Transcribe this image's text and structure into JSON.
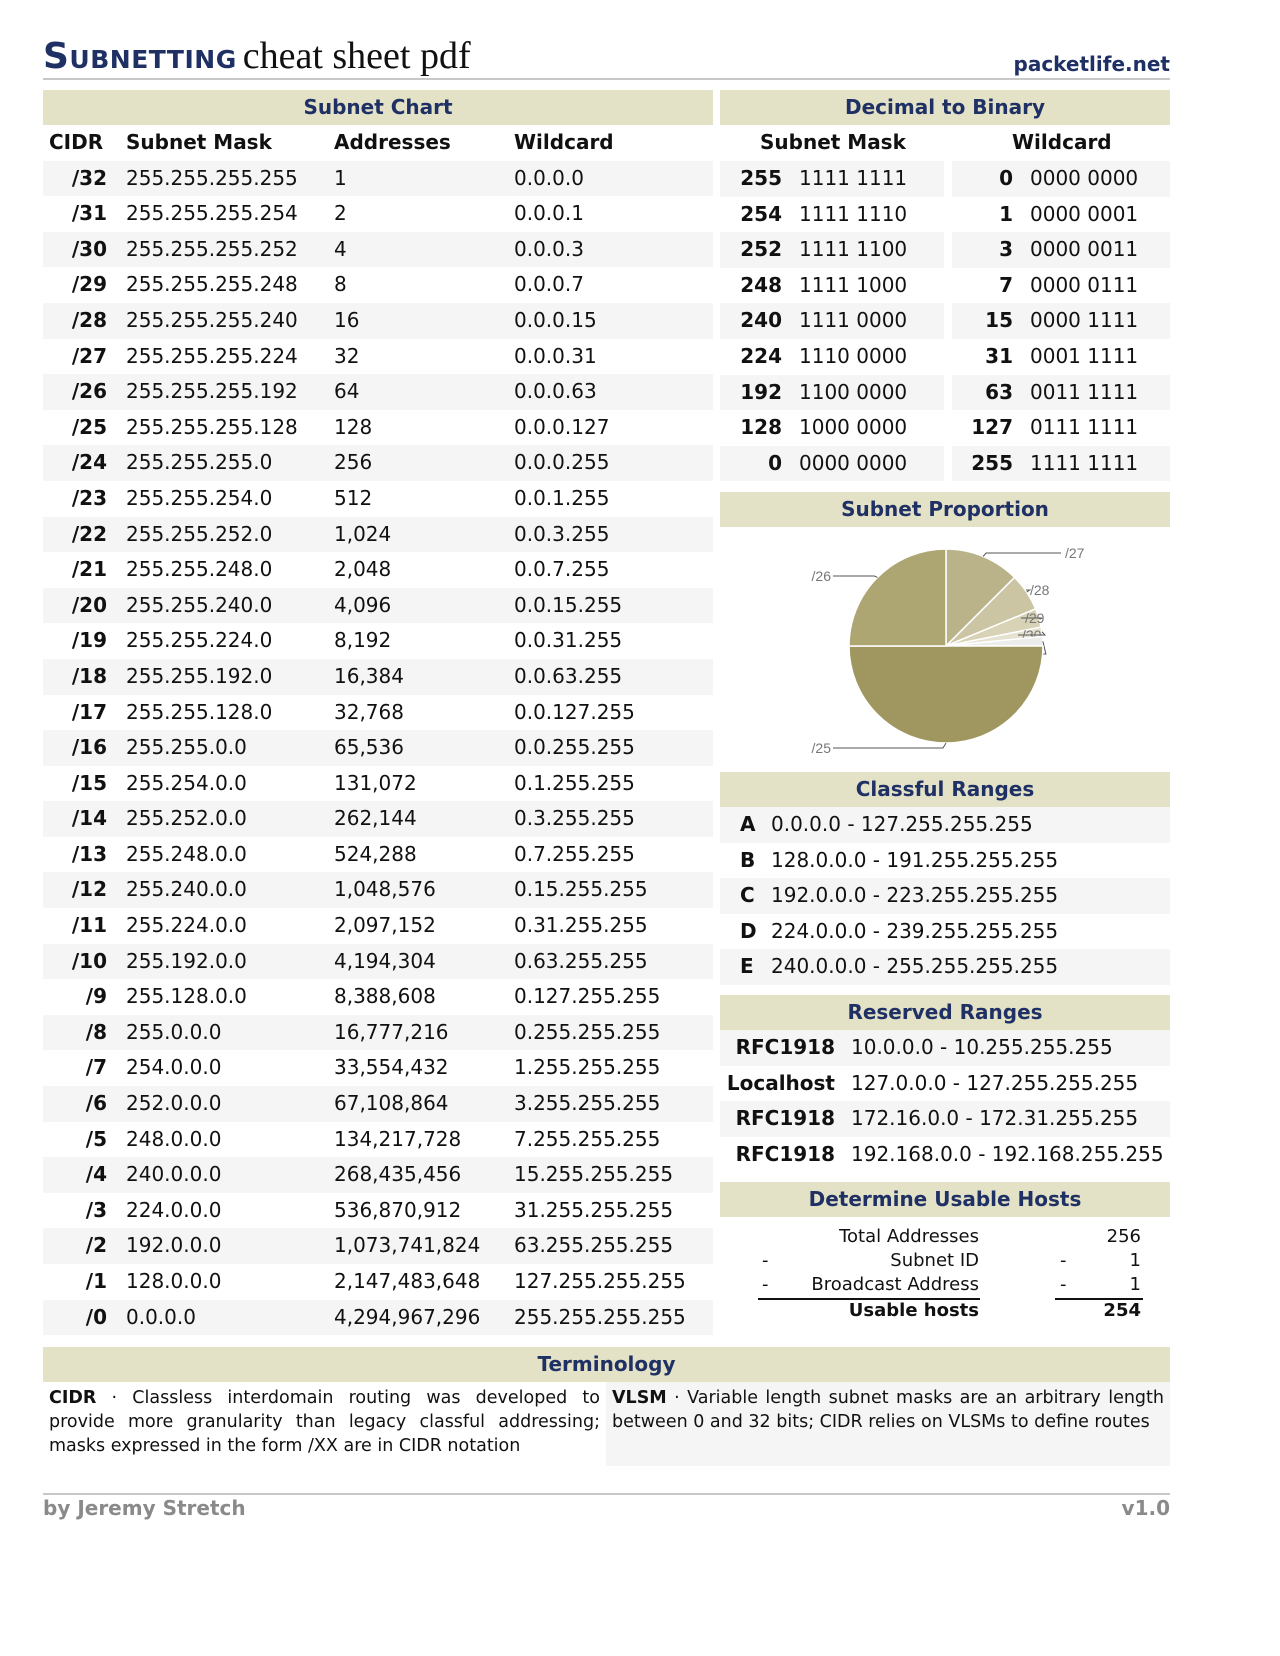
{
  "header": {
    "title_bold": "Subnetting",
    "title_rest": "cheat sheet pdf",
    "site": "packetlife.net"
  },
  "subnet_chart": {
    "title": "Subnet Chart",
    "columns": [
      "CIDR",
      "Subnet Mask",
      "Addresses",
      "Wildcard"
    ],
    "rows": [
      [
        "/32",
        "255.255.255.255",
        "1",
        "0.0.0.0"
      ],
      [
        "/31",
        "255.255.255.254",
        "2",
        "0.0.0.1"
      ],
      [
        "/30",
        "255.255.255.252",
        "4",
        "0.0.0.3"
      ],
      [
        "/29",
        "255.255.255.248",
        "8",
        "0.0.0.7"
      ],
      [
        "/28",
        "255.255.255.240",
        "16",
        "0.0.0.15"
      ],
      [
        "/27",
        "255.255.255.224",
        "32",
        "0.0.0.31"
      ],
      [
        "/26",
        "255.255.255.192",
        "64",
        "0.0.0.63"
      ],
      [
        "/25",
        "255.255.255.128",
        "128",
        "0.0.0.127"
      ],
      [
        "/24",
        "255.255.255.0",
        "256",
        "0.0.0.255"
      ],
      [
        "/23",
        "255.255.254.0",
        "512",
        "0.0.1.255"
      ],
      [
        "/22",
        "255.255.252.0",
        "1,024",
        "0.0.3.255"
      ],
      [
        "/21",
        "255.255.248.0",
        "2,048",
        "0.0.7.255"
      ],
      [
        "/20",
        "255.255.240.0",
        "4,096",
        "0.0.15.255"
      ],
      [
        "/19",
        "255.255.224.0",
        "8,192",
        "0.0.31.255"
      ],
      [
        "/18",
        "255.255.192.0",
        "16,384",
        "0.0.63.255"
      ],
      [
        "/17",
        "255.255.128.0",
        "32,768",
        "0.0.127.255"
      ],
      [
        "/16",
        "255.255.0.0",
        "65,536",
        "0.0.255.255"
      ],
      [
        "/15",
        "255.254.0.0",
        "131,072",
        "0.1.255.255"
      ],
      [
        "/14",
        "255.252.0.0",
        "262,144",
        "0.3.255.255"
      ],
      [
        "/13",
        "255.248.0.0",
        "524,288",
        "0.7.255.255"
      ],
      [
        "/12",
        "255.240.0.0",
        "1,048,576",
        "0.15.255.255"
      ],
      [
        "/11",
        "255.224.0.0",
        "2,097,152",
        "0.31.255.255"
      ],
      [
        "/10",
        "255.192.0.0",
        "4,194,304",
        "0.63.255.255"
      ],
      [
        "/9",
        "255.128.0.0",
        "8,388,608",
        "0.127.255.255"
      ],
      [
        "/8",
        "255.0.0.0",
        "16,777,216",
        "0.255.255.255"
      ],
      [
        "/7",
        "254.0.0.0",
        "33,554,432",
        "1.255.255.255"
      ],
      [
        "/6",
        "252.0.0.0",
        "67,108,864",
        "3.255.255.255"
      ],
      [
        "/5",
        "248.0.0.0",
        "134,217,728",
        "7.255.255.255"
      ],
      [
        "/4",
        "240.0.0.0",
        "268,435,456",
        "15.255.255.255"
      ],
      [
        "/3",
        "224.0.0.0",
        "536,870,912",
        "31.255.255.255"
      ],
      [
        "/2",
        "192.0.0.0",
        "1,073,741,824",
        "63.255.255.255"
      ],
      [
        "/1",
        "128.0.0.0",
        "2,147,483,648",
        "127.255.255.255"
      ],
      [
        "/0",
        "0.0.0.0",
        "4,294,967,296",
        "255.255.255.255"
      ]
    ]
  },
  "dec_bin": {
    "title": "Decimal to Binary",
    "columns": [
      "Subnet Mask",
      "Wildcard"
    ],
    "mask_rows": [
      [
        "255",
        "1111 1111"
      ],
      [
        "254",
        "1111 1110"
      ],
      [
        "252",
        "1111 1100"
      ],
      [
        "248",
        "1111 1000"
      ],
      [
        "240",
        "1111 0000"
      ],
      [
        "224",
        "1110 0000"
      ],
      [
        "192",
        "1100 0000"
      ],
      [
        "128",
        "1000 0000"
      ],
      [
        "0",
        "0000 0000"
      ]
    ],
    "wild_rows": [
      [
        "0",
        "0000 0000"
      ],
      [
        "1",
        "0000 0001"
      ],
      [
        "3",
        "0000 0011"
      ],
      [
        "7",
        "0000 0111"
      ],
      [
        "15",
        "0000 1111"
      ],
      [
        "31",
        "0001 1111"
      ],
      [
        "63",
        "0011 1111"
      ],
      [
        "127",
        "0111 1111"
      ],
      [
        "255",
        "1111 1111"
      ]
    ]
  },
  "proportion": {
    "title": "Subnet Proportion"
  },
  "chart_data": {
    "type": "pie",
    "categories": [
      "/27",
      "/28",
      "/29",
      "/30",
      "/30",
      "/25",
      "/26"
    ],
    "values": [
      0.125,
      0.0625,
      0.03125,
      0.015625,
      0.015625,
      0.5,
      0.25
    ],
    "colors": [
      "#bab289",
      "#ccc5a3",
      "#d8d2b6",
      "#e6e2d0",
      "#ececec",
      "#9f9660",
      "#ada572"
    ]
  },
  "classful": {
    "title": "Classful Ranges",
    "rows": [
      [
        "A",
        "0.0.0.0 - 127.255.255.255"
      ],
      [
        "B",
        "128.0.0.0 - 191.255.255.255"
      ],
      [
        "C",
        "192.0.0.0 - 223.255.255.255"
      ],
      [
        "D",
        "224.0.0.0 - 239.255.255.255"
      ],
      [
        "E",
        "240.0.0.0 - 255.255.255.255"
      ]
    ]
  },
  "reserved": {
    "title": "Reserved Ranges",
    "rows": [
      [
        "RFC1918",
        "10.0.0.0 - 10.255.255.255"
      ],
      [
        "Localhost",
        "127.0.0.0 - 127.255.255.255"
      ],
      [
        "RFC1918",
        "172.16.0.0 - 172.31.255.255"
      ],
      [
        "RFC1918",
        "192.168.0.0 - 192.168.255.255"
      ]
    ]
  },
  "usable": {
    "title": "Determine Usable Hosts",
    "rows": [
      [
        "",
        "Total Addresses",
        "",
        "256"
      ],
      [
        "-",
        "Subnet ID",
        "-",
        "1"
      ],
      [
        "-",
        "Broadcast Address",
        "-",
        "1"
      ]
    ],
    "result_label": "Usable hosts",
    "result_value": "254"
  },
  "terminology": {
    "title": "Terminology",
    "cidr_term": "CIDR",
    "cidr_text": " · Classless interdomain routing was developed to provide more granularity than legacy classful addressing; masks expressed in the form /XX are in CIDR notation",
    "vlsm_term": "VLSM",
    "vlsm_text": " · Variable length subnet masks are an arbitrary length between 0 and 32 bits; CIDR relies on VLSMs to define routes"
  },
  "footer": {
    "author": "by Jeremy Stretch",
    "version": "v1.0"
  }
}
